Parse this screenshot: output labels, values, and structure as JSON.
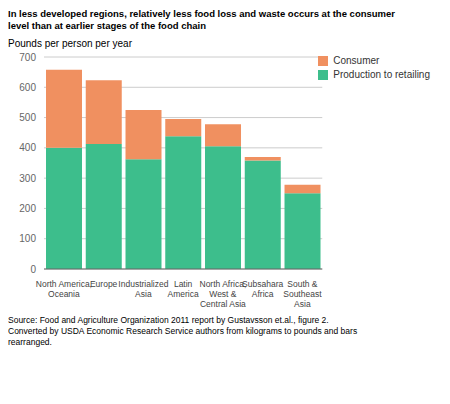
{
  "chart_data": {
    "type": "bar",
    "stacked": true,
    "title": "In less developed regions, relatively less food loss and waste occurs at the consumer\nlevel than at earlier stages of the food chain",
    "ylabel": "Pounds per person per year",
    "annotations": [
      "Source: Food and Agriculture Organization 2011 report by Gustavsson et.al., figure 2.\nConverted by USDA Economic Research Service authors from kilograms to pounds and bars\nrearranged."
    ],
    "categories": [
      "North America,\nOceania",
      "Europe",
      "Industrialized\nAsia",
      "Latin\nAmerica",
      "North Africa,\nWest &\nCentral Asia",
      "Subsahara\nAfrica",
      "South &\nSoutheast\nAsia"
    ],
    "series": [
      {
        "name": "Production to retailing",
        "color": "#3dbe8c",
        "values": [
          400,
          413,
          362,
          438,
          405,
          358,
          250
        ]
      },
      {
        "name": "Consumer",
        "color": "#f09060",
        "values": [
          258,
          210,
          163,
          57,
          73,
          12,
          28
        ]
      }
    ],
    "ylim": [
      0,
      700
    ],
    "yticks": [
      0,
      100,
      200,
      300,
      400,
      500,
      600,
      700
    ],
    "grid": true,
    "legend": "upper right"
  }
}
